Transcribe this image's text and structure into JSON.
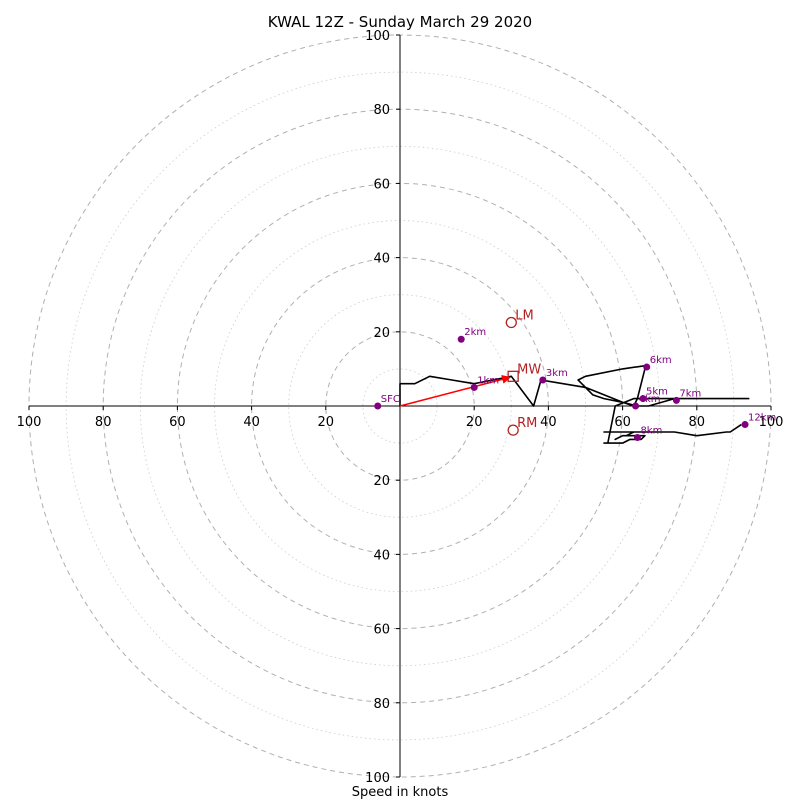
{
  "chart_data": {
    "type": "line",
    "title": "KWAL 12Z - Sunday March 29 2020",
    "xlabel": "Speed in knots",
    "rings": [
      10,
      20,
      30,
      40,
      50,
      60,
      70,
      80,
      90,
      100
    ],
    "ring_labels": [
      20,
      40,
      60,
      80,
      100
    ],
    "axis_range": [
      -100,
      100
    ],
    "hodograph": {
      "x": [
        0,
        0,
        4,
        8,
        14,
        20,
        30,
        36,
        38,
        50,
        60,
        63,
        64,
        66,
        67,
        60,
        50,
        48,
        50,
        52,
        55,
        60,
        64,
        67,
        74,
        76,
        84,
        92,
        94,
        90,
        86,
        74,
        68,
        63,
        58,
        56,
        55,
        57,
        60,
        62,
        63,
        64,
        65,
        66,
        64,
        62,
        60,
        58,
        60,
        64,
        66,
        64,
        62,
        61,
        63,
        65,
        66,
        66,
        65,
        64,
        63,
        62,
        61,
        60,
        62,
        64,
        66,
        70,
        72,
        74,
        74,
        74,
        74,
        60,
        56,
        55,
        60,
        64,
        68,
        74,
        80,
        88,
        89,
        92
      ],
      "y": [
        0,
        6,
        6,
        8,
        7,
        6,
        8,
        0,
        7,
        5,
        1,
        0,
        2,
        10,
        11,
        10,
        8,
        7,
        5,
        3,
        2,
        1,
        0,
        0,
        2,
        2,
        2,
        2,
        2,
        2,
        2,
        2,
        2,
        2,
        0,
        -10,
        -10,
        -10,
        -10,
        -9,
        -9,
        -9,
        -9,
        -8,
        -8,
        -8,
        -8,
        -9,
        -8,
        -8,
        -8,
        -8,
        -8,
        -8,
        -7,
        -7,
        -7,
        -7,
        -7,
        -7,
        -7,
        -7,
        -7,
        -7,
        -7,
        -7,
        -7,
        -7,
        -7,
        -7,
        -7,
        -7,
        -7,
        -7,
        -7,
        -7,
        -7,
        -7,
        -7,
        -7,
        -8,
        -7,
        -7,
        -5
      ]
    },
    "height_markers": [
      {
        "label": "SFC",
        "x": -6,
        "y": 0
      },
      {
        "label": "1km",
        "x": 20,
        "y": 5
      },
      {
        "label": "2km",
        "x": 16.5,
        "y": 18
      },
      {
        "label": "3km",
        "x": 38.5,
        "y": 7
      },
      {
        "label": "4km",
        "x": 63.5,
        "y": 0
      },
      {
        "label": "5km",
        "x": 65.5,
        "y": 2
      },
      {
        "label": "6km",
        "x": 66.5,
        "y": 10.5
      },
      {
        "label": "7km",
        "x": 74.5,
        "y": 1.5
      },
      {
        "label": "8km",
        "x": 64,
        "y": -8.5
      },
      {
        "label": "12km",
        "x": 93,
        "y": -5
      }
    ],
    "points": [
      {
        "label": "LM",
        "x": 30,
        "y": 22.5,
        "marker": "circle"
      },
      {
        "label": "MW",
        "x": 30.5,
        "y": 8,
        "marker": "square"
      },
      {
        "label": "RM",
        "x": 30.5,
        "y": -6.5,
        "marker": "circle"
      }
    ],
    "colors": {
      "hodograph": "#000000",
      "markers": "#800080",
      "points": "#b22222",
      "shear_vector": "#ff0000",
      "rings": "#bbbbbb"
    }
  }
}
